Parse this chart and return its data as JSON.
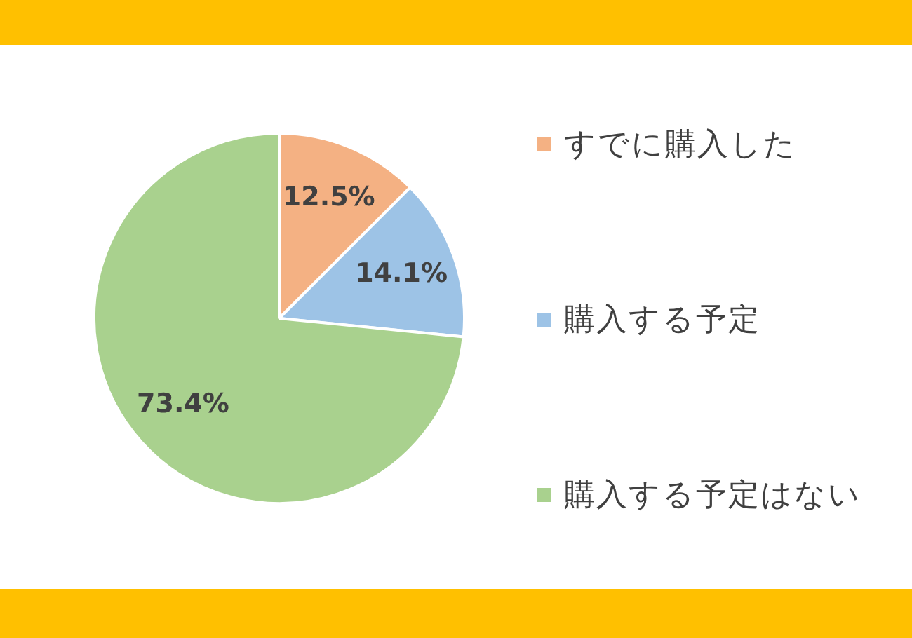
{
  "chart_data": {
    "type": "pie",
    "categories": [
      "すでに購入した",
      "購入する予定",
      "購入する予定はない"
    ],
    "values": [
      12.5,
      14.1,
      73.4
    ],
    "colors": [
      "#f4b183",
      "#9dc3e6",
      "#a9d18e"
    ],
    "value_labels": [
      "12.5%",
      "14.1%",
      "73.4%"
    ],
    "legend": "right"
  }
}
